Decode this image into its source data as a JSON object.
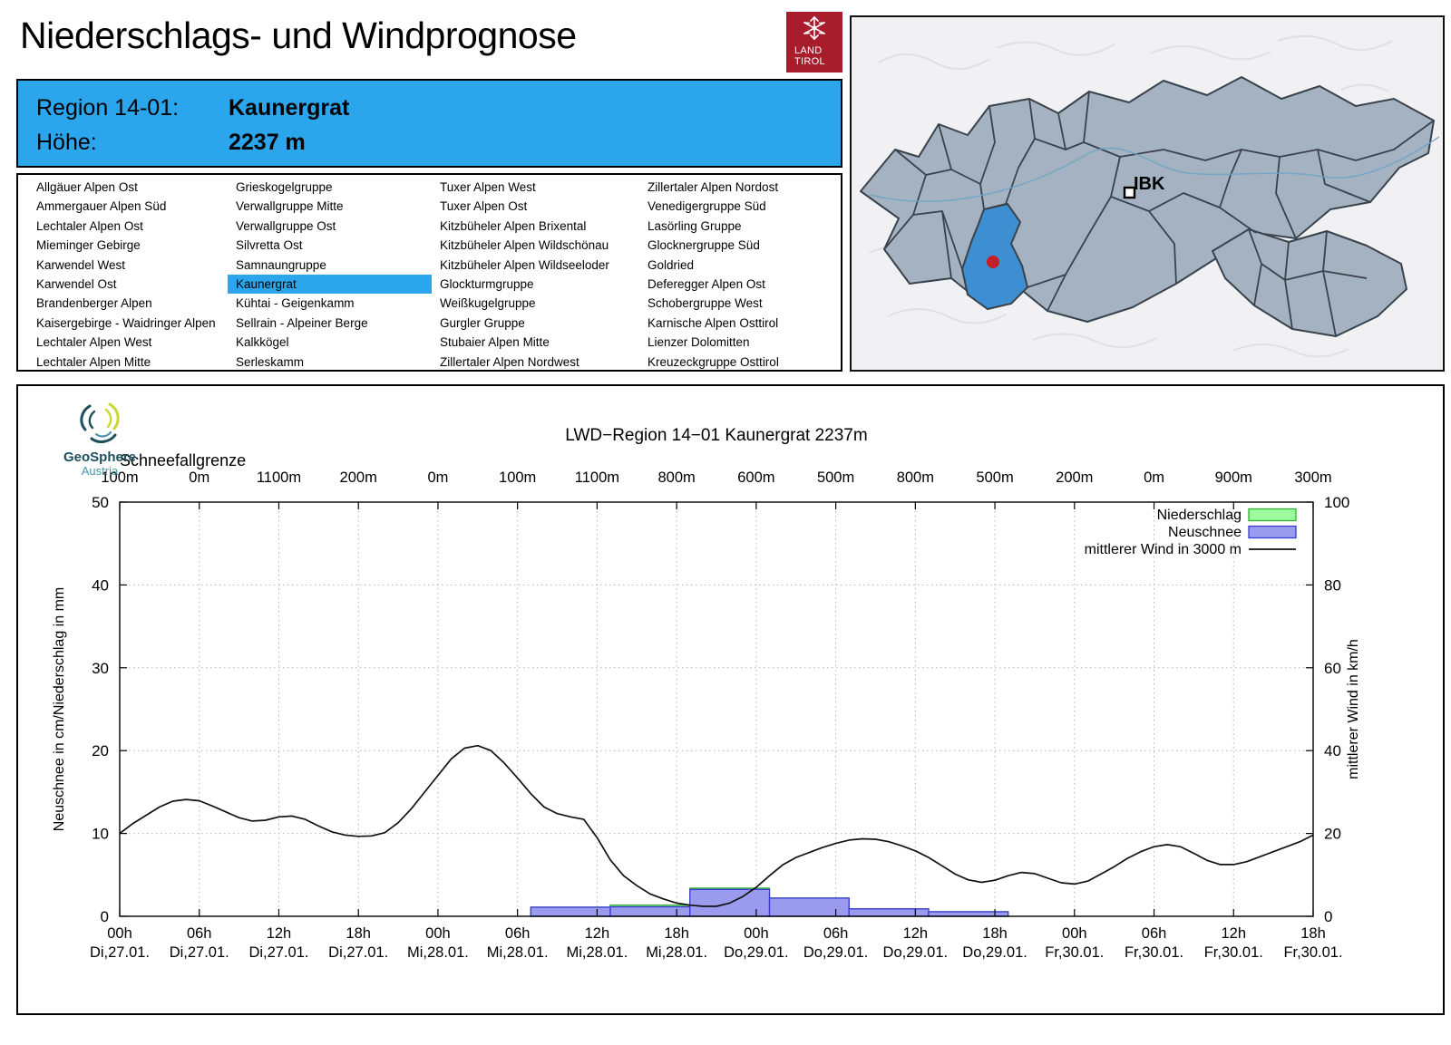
{
  "header": {
    "title": "Niederschlags- und Windprognose",
    "logo": {
      "line1": "LAND",
      "line2": "TIROL"
    }
  },
  "region_info": {
    "region_label": "Region 14-01:",
    "region_value": "Kaunergrat",
    "altitude_label": "Höhe:",
    "altitude_value": "2237 m"
  },
  "region_list": {
    "selected": "Kaunergrat",
    "columns": [
      [
        "Allgäuer Alpen Ost",
        "Ammergauer Alpen Süd",
        "Lechtaler Alpen Ost",
        "Mieminger Gebirge",
        "Karwendel West",
        "Karwendel Ost",
        "Brandenberger Alpen",
        "Kaisergebirge - Waidringer Alpen",
        "Lechtaler Alpen West",
        "Lechtaler Alpen Mitte"
      ],
      [
        "Grieskogelgruppe",
        "Verwallgruppe Mitte",
        "Verwallgruppe Ost",
        "Silvretta Ost",
        "Samnaungruppe",
        "Kaunergrat",
        "Kühtai - Geigenkamm",
        "Sellrain - Alpeiner Berge",
        "Kalkkögel",
        "Serleskamm"
      ],
      [
        "Tuxer Alpen West",
        "Tuxer Alpen Ost",
        "Kitzbüheler Alpen Brixental",
        "Kitzbüheler Alpen Wildschönau",
        "Kitzbüheler Alpen Wildseeloder",
        "Glockturmgruppe",
        "Weißkugelgruppe",
        "Gurgler Gruppe",
        "Stubaier Alpen Mitte",
        "Zillertaler Alpen Nordwest"
      ],
      [
        "Zillertaler Alpen Nordost",
        "Venedigergruppe Süd",
        "Lasörling Gruppe",
        "Glocknergruppe Süd",
        "Goldried",
        "Deferegger Alpen Ost",
        "Schobergruppe West",
        "Karnische Alpen Osttirol",
        "Lienzer Dolomitten",
        "Kreuzeckgruppe Osttirol"
      ]
    ]
  },
  "map": {
    "city_label": "IBK"
  },
  "geosphere": {
    "name": "GeoSphere",
    "country": "Austria"
  },
  "colors": {
    "accent_blue": "#2ba6ec",
    "selected_region_blue": "#3e8ed2",
    "marker_red": "#c22127",
    "logo_red": "#a81d2c",
    "precip_fill": "#9cfc9c",
    "precip_stroke": "#2db32d",
    "snow_fill": "#9a9aee",
    "snow_stroke": "#3a3ad1",
    "wind_line": "#111111",
    "grid": "#b5b5b5"
  },
  "chart_data": {
    "type": "bar",
    "title": "LWD−Region 14−01 Kaunergrat 2237m",
    "snowline": {
      "label": "Schneefallgrenze",
      "values": [
        "100m",
        "0m",
        "1100m",
        "200m",
        "0m",
        "100m",
        "1100m",
        "800m",
        "600m",
        "500m",
        "800m",
        "500m",
        "200m",
        "0m",
        "900m",
        "300m"
      ]
    },
    "ylabel_left": "Neuschnee in cm/Niederschlag in mm",
    "ylabel_right": "mittlerer Wind in km/h",
    "ylim_left": [
      0,
      50
    ],
    "ylim_right": [
      0,
      100
    ],
    "yticks_left": [
      0,
      10,
      20,
      30,
      40,
      50
    ],
    "yticks_right": [
      0,
      20,
      40,
      60,
      80,
      100
    ],
    "grid": true,
    "legend_position": "top-right",
    "legend": [
      {
        "label": "Niederschlag",
        "swatch": "box",
        "color_key": "precip"
      },
      {
        "label": "Neuschnee",
        "swatch": "box",
        "color_key": "snow"
      },
      {
        "label": "mittlerer Wind in 3000 m",
        "swatch": "line",
        "color_key": "wind"
      }
    ],
    "x_ticks": [
      {
        "time": "00h",
        "date": "Di,27.01."
      },
      {
        "time": "06h",
        "date": "Di,27.01."
      },
      {
        "time": "12h",
        "date": "Di,27.01."
      },
      {
        "time": "18h",
        "date": "Di,27.01."
      },
      {
        "time": "00h",
        "date": "Mi,28.01."
      },
      {
        "time": "06h",
        "date": "Mi,28.01."
      },
      {
        "time": "12h",
        "date": "Mi,28.01."
      },
      {
        "time": "18h",
        "date": "Mi,28.01."
      },
      {
        "time": "00h",
        "date": "Do,29.01."
      },
      {
        "time": "06h",
        "date": "Do,29.01."
      },
      {
        "time": "12h",
        "date": "Do,29.01."
      },
      {
        "time": "18h",
        "date": "Do,29.01."
      },
      {
        "time": "00h",
        "date": "Fr,30.01."
      },
      {
        "time": "06h",
        "date": "Fr,30.01."
      },
      {
        "time": "12h",
        "date": "Fr,30.01."
      },
      {
        "time": "18h",
        "date": "Fr,30.01."
      }
    ],
    "interval_hours": 6,
    "bar_offset_hours": 1,
    "series": [
      {
        "name": "Niederschlag (mm pro 6h)",
        "values": [
          0,
          0,
          0,
          0,
          0,
          1.1,
          1.35,
          3.4,
          2.2,
          0.9,
          0.55,
          0,
          0,
          0,
          0
        ]
      },
      {
        "name": "Neuschnee (cm pro 6h)",
        "values": [
          0,
          0,
          0,
          0,
          0,
          1.1,
          1.15,
          3.25,
          2.2,
          0.9,
          0.55,
          0,
          0,
          0,
          0
        ]
      }
    ],
    "wind_kmh": [
      [
        0,
        20
      ],
      [
        1,
        22.4
      ],
      [
        2,
        24.4
      ],
      [
        3,
        26.4
      ],
      [
        4,
        27.8
      ],
      [
        5,
        28.2
      ],
      [
        6,
        27.9
      ],
      [
        7,
        26.6
      ],
      [
        8,
        25.2
      ],
      [
        9,
        23.8
      ],
      [
        10,
        23
      ],
      [
        11,
        23.2
      ],
      [
        12,
        24
      ],
      [
        13,
        24.2
      ],
      [
        14,
        23.4
      ],
      [
        15,
        21.8
      ],
      [
        16,
        20.4
      ],
      [
        17,
        19.6
      ],
      [
        18,
        19.3
      ],
      [
        19,
        19.4
      ],
      [
        20,
        20.2
      ],
      [
        21,
        22.6
      ],
      [
        22,
        26
      ],
      [
        23,
        30
      ],
      [
        24,
        34
      ],
      [
        25,
        38
      ],
      [
        26,
        40.6
      ],
      [
        27,
        41.2
      ],
      [
        28,
        40
      ],
      [
        29,
        37
      ],
      [
        30,
        33.4
      ],
      [
        31,
        29.6
      ],
      [
        32,
        26.4
      ],
      [
        33,
        24.8
      ],
      [
        34,
        24
      ],
      [
        35,
        23.4
      ],
      [
        36,
        19
      ],
      [
        37,
        13.6
      ],
      [
        38,
        9.8
      ],
      [
        39,
        7.4
      ],
      [
        40,
        5.4
      ],
      [
        41,
        4.2
      ],
      [
        42,
        3.2
      ],
      [
        43,
        2.7
      ],
      [
        44,
        2.4
      ],
      [
        45,
        2.4
      ],
      [
        46,
        3.2
      ],
      [
        47,
        4.8
      ],
      [
        48,
        7
      ],
      [
        49,
        9.8
      ],
      [
        50,
        12.4
      ],
      [
        51,
        14.2
      ],
      [
        52,
        15.4
      ],
      [
        53,
        16.6
      ],
      [
        54,
        17.6
      ],
      [
        55,
        18.4
      ],
      [
        56,
        18.7
      ],
      [
        57,
        18.6
      ],
      [
        58,
        18
      ],
      [
        59,
        17
      ],
      [
        60,
        15.8
      ],
      [
        61,
        14.2
      ],
      [
        62,
        12.2
      ],
      [
        63,
        10.2
      ],
      [
        64,
        8.8
      ],
      [
        65,
        8.2
      ],
      [
        66,
        8.7
      ],
      [
        67,
        9.8
      ],
      [
        68,
        10.6
      ],
      [
        69,
        10.3
      ],
      [
        70,
        9.2
      ],
      [
        71,
        8.1
      ],
      [
        72,
        7.8
      ],
      [
        73,
        8.5
      ],
      [
        74,
        10.2
      ],
      [
        75,
        12
      ],
      [
        76,
        14
      ],
      [
        77,
        15.6
      ],
      [
        78,
        16.8
      ],
      [
        79,
        17.3
      ],
      [
        80,
        16.8
      ],
      [
        81,
        15.2
      ],
      [
        82,
        13.5
      ],
      [
        83,
        12.5
      ],
      [
        84,
        12.5
      ],
      [
        85,
        13.2
      ],
      [
        86,
        14.4
      ],
      [
        87,
        15.6
      ],
      [
        88,
        16.8
      ],
      [
        89,
        18
      ],
      [
        90,
        19.6
      ]
    ]
  }
}
